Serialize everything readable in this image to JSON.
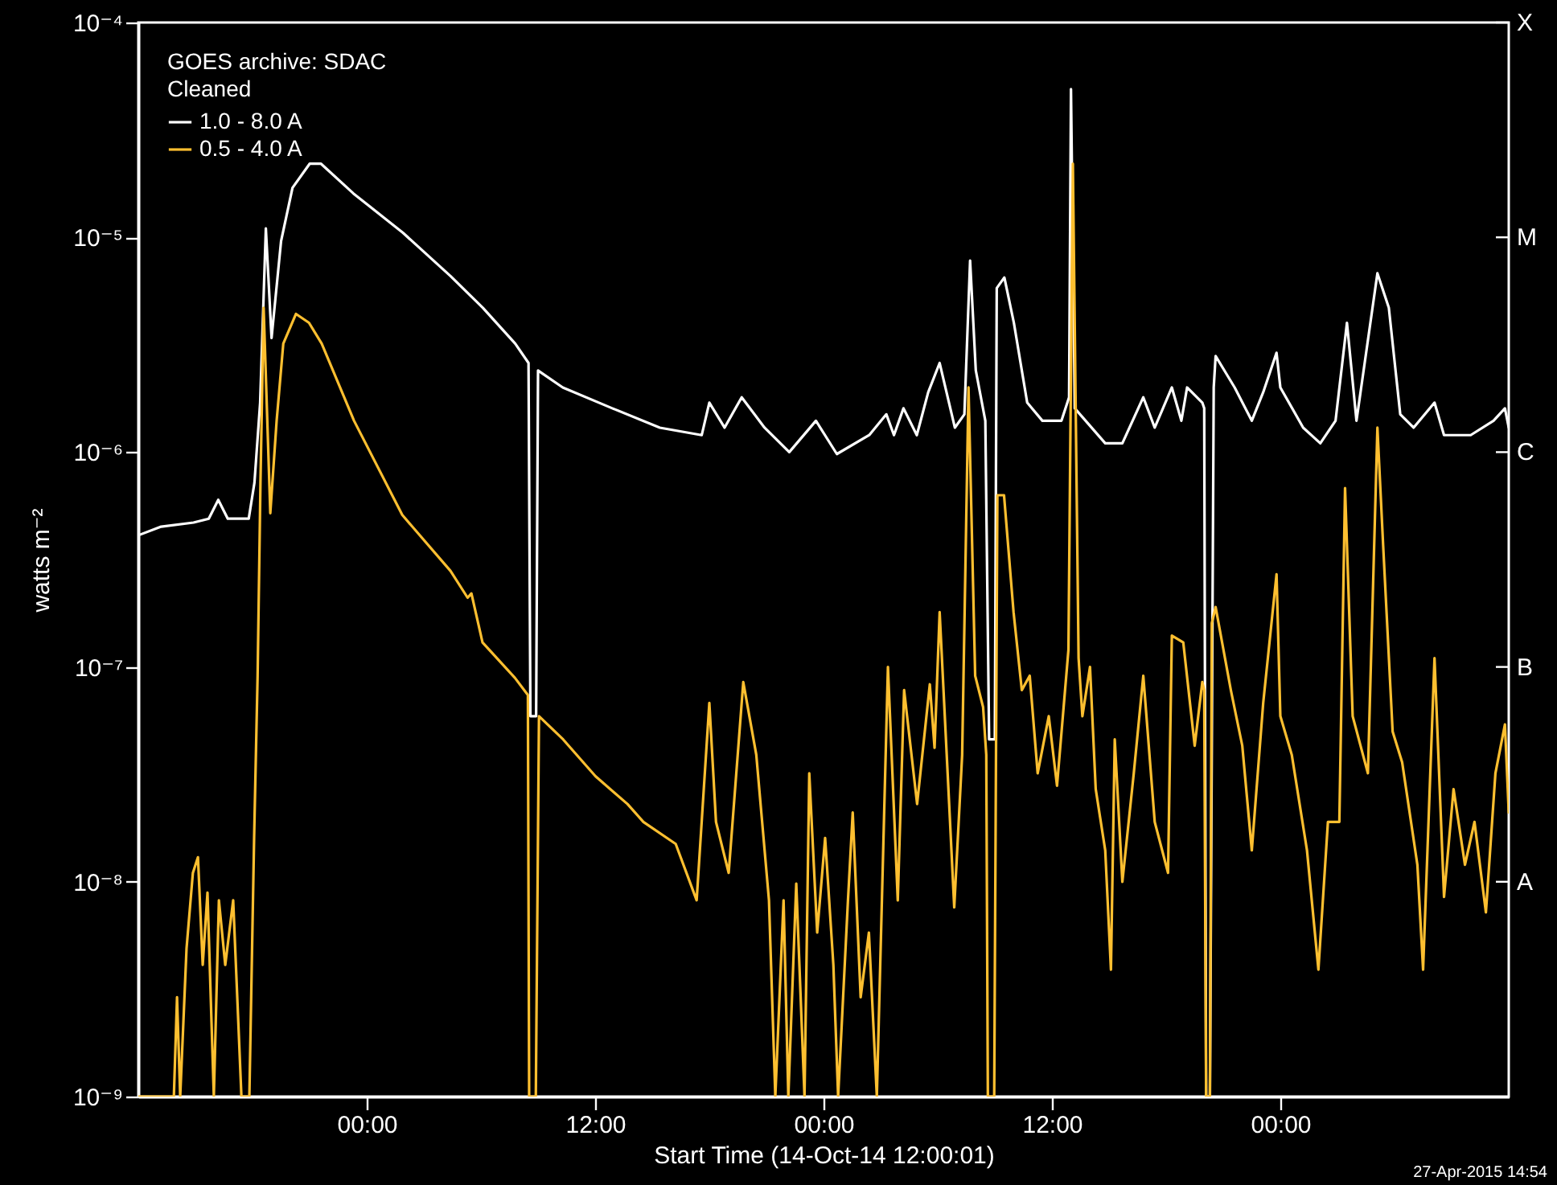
{
  "chart_data": {
    "type": "line",
    "xlabel": "Start Time (14-Oct-14 12:00:01)",
    "ylabel": "watts m⁻²",
    "legend_title": "GOES archive: SDAC",
    "legend": "top left",
    "grid": false,
    "log": true,
    "line_style": "solid",
    "marker": "none",
    "annotations": [
      "Cleaned",
      "A",
      "B",
      "C",
      "M",
      "X",
      "27-Apr-2015 14:54"
    ],
    "xlim": [
      "--10-14T12:00",
      "--10-17T12:00"
    ],
    "xticks": [
      {
        "value": "--10-15T00:00",
        "label": "00:00"
      },
      {
        "value": "--10-15T12:00",
        "label": "12:00"
      },
      {
        "value": "--10-16T00:00",
        "label": "00:00"
      },
      {
        "value": "--10-16T12:00",
        "label": "12:00"
      },
      {
        "value": "--10-17T00:00",
        "label": "00:00"
      }
    ],
    "ylim": [
      1e-09,
      0.0001
    ],
    "yticks": [
      {
        "value": 1e-09,
        "label": "10⁻⁹"
      },
      {
        "value": 1e-08,
        "label": "10⁻⁸"
      },
      {
        "value": 1e-07,
        "label": "10⁻⁷"
      },
      {
        "value": 1e-06,
        "label": "10⁻⁶"
      },
      {
        "value": 1e-05,
        "label": "10⁻⁵"
      },
      {
        "value": 0.0001,
        "label": "10⁻⁴"
      }
    ],
    "series": [
      {
        "name": "1.0 - 8.0 A",
        "color": "#ffffff",
        "x": [
          "--10-14T12:00",
          "--10-14T13:12",
          "--10-14T14:54",
          "--10-14T15:42",
          "--10-14T16:12",
          "--10-14T16:42",
          "--10-14T17:48",
          "--10-14T18:06",
          "--10-14T18:24",
          "--10-14T18:42",
          "--10-14T19:00",
          "--10-14T19:30",
          "--10-14T20:06",
          "--10-14T21:00",
          "--10-14T21:36",
          "--10-14T23:18",
          "--10-15T01:54",
          "--10-15T04:24",
          "--10-15T06:06",
          "--10-15T07:48",
          "--10-15T08:30",
          "--10-15T08:36",
          "--10-15T08:54",
          "--10-15T09:00",
          "--10-15T10:18",
          "--10-15T12:54",
          "--10-15T15:24",
          "--10-15T17:36",
          "--10-15T18:00",
          "--10-15T18:48",
          "--10-15T19:42",
          "--10-15T20:54",
          "--10-15T22:12",
          "--10-15T23:36",
          "--10-16T00:42",
          "--10-16T02:24",
          "--10-16T03:18",
          "--10-16T03:42",
          "--10-16T04:12",
          "--10-16T04:54",
          "--10-16T05:30",
          "--10-16T06:06",
          "--10-16T06:54",
          "--10-16T07:24",
          "--10-16T07:42",
          "--10-16T08:00",
          "--10-16T08:30",
          "--10-16T08:42",
          "--10-16T09:00",
          "--10-16T09:06",
          "--10-16T09:30",
          "--10-16T10:00",
          "--10-16T10:42",
          "--10-16T11:30",
          "--10-16T12:30",
          "--10-16T12:54",
          "--10-16T13:00",
          "--10-16T13:12",
          "--10-16T14:48",
          "--10-16T15:42",
          "--10-16T16:48",
          "--10-16T17:24",
          "--10-16T18:18",
          "--10-16T18:48",
          "--10-16T19:06",
          "--10-16T19:54",
          "--10-16T20:00",
          "--10-16T20:06",
          "--10-16T20:18",
          "--10-16T20:30",
          "--10-16T20:36",
          "--10-16T21:36",
          "--10-16T22:30",
          "--10-16T23:06",
          "--10-16T23:48",
          "--10-17T00:00",
          "--10-17T01:12",
          "--10-17T02:06",
          "--10-17T02:54",
          "--10-17T03:30",
          "--10-17T04:00",
          "--10-17T05:06",
          "--10-17T05:42",
          "--10-17T06:18",
          "--10-17T07:00",
          "--10-17T08:06",
          "--10-17T08:36",
          "--10-17T10:00",
          "--10-17T11:12",
          "--10-17T11:48",
          "--10-17T12:00"
        ],
        "values": [
          4.1e-07,
          4.5e-07,
          4.7e-07,
          4.9e-07,
          6e-07,
          4.9e-07,
          4.9e-07,
          7.2e-07,
          1.7e-06,
          1.1e-05,
          3.4e-06,
          9.6e-06,
          1.7e-05,
          2.2e-05,
          2.2e-05,
          1.6e-05,
          1.05e-05,
          6.6e-06,
          4.7e-06,
          3.2e-06,
          2.6e-06,
          5.9e-08,
          5.9e-08,
          2.4e-06,
          2e-06,
          1.6e-06,
          1.3e-06,
          1.2e-06,
          1.7e-06,
          1.3e-06,
          1.8e-06,
          1.3e-06,
          1e-06,
          1.4e-06,
          9.8e-07,
          1.2e-06,
          1.5e-06,
          1.2e-06,
          1.6e-06,
          1.2e-06,
          1.9e-06,
          2.6e-06,
          1.3e-06,
          1.5e-06,
          7.8e-06,
          2.4e-06,
          1.4e-06,
          4.6e-08,
          4.6e-08,
          5.8e-06,
          6.5e-06,
          4e-06,
          1.7e-06,
          1.4e-06,
          1.4e-06,
          1.8e-06,
          4.9e-05,
          1.6e-06,
          1.1e-06,
          1.1e-06,
          1.8e-06,
          1.3e-06,
          2e-06,
          1.4e-06,
          2e-06,
          1.7e-06,
          1.6e-06,
          1e-09,
          1e-09,
          2e-06,
          2.8e-06,
          2e-06,
          1.4e-06,
          1.9e-06,
          2.9e-06,
          2e-06,
          1.3e-06,
          1.1e-06,
          1.4e-06,
          4e-06,
          1.4e-06,
          6.8e-06,
          4.7e-06,
          1.5e-06,
          1.3e-06,
          1.7e-06,
          1.2e-06,
          1.2e-06,
          1.4e-06,
          1.6e-06,
          1.3e-06
        ]
      },
      {
        "name": "0.5 - 4.0 A",
        "color": "#fdbf30",
        "x": [
          "--10-14T12:00",
          "--10-14T13:52",
          "--10-14T14:02",
          "--10-14T14:12",
          "--10-14T14:32",
          "--10-14T14:52",
          "--10-14T15:08",
          "--10-14T15:23",
          "--10-14T15:38",
          "--10-14T15:58",
          "--10-14T16:14",
          "--10-14T16:34",
          "--10-14T16:59",
          "--10-14T17:25",
          "--10-14T17:50",
          "--10-14T18:05",
          "--10-14T18:16",
          "--10-14T18:25",
          "--10-14T18:35",
          "--10-14T18:56",
          "--10-14T19:16",
          "--10-14T19:37",
          "--10-14T20:17",
          "--10-14T20:58",
          "--10-14T21:38",
          "--10-14T23:20",
          "--10-15T01:52",
          "--10-15T04:24",
          "--10-15T05:18",
          "--10-15T05:30",
          "--10-15T06:05",
          "--10-15T07:47",
          "--10-15T08:28",
          "--10-15T08:32",
          "--10-15T08:53",
          "--10-15T09:03",
          "--10-15T10:19",
          "--10-15T12:01",
          "--10-15T13:42",
          "--10-15T14:32",
          "--10-15T16:14",
          "--10-15T17:20",
          "--10-15T18:00",
          "--10-15T18:21",
          "--10-15T19:01",
          "--10-15T19:47",
          "--10-15T20:28",
          "--10-15T21:08",
          "--10-15T21:28",
          "--10-15T21:54",
          "--10-15T22:09",
          "--10-15T22:34",
          "--10-15T23:00",
          "--10-15T23:15",
          "--10-15T23:40",
          "--10-16T00:05",
          "--10-16T00:31",
          "--10-16T00:46",
          "--10-16T01:17",
          "--10-16T01:32",
          "--10-16T01:57",
          "--10-16T02:23",
          "--10-16T02:48",
          "--10-16T03:23",
          "--10-16T03:54",
          "--10-16T04:14",
          "--10-16T04:55",
          "--10-16T05:35",
          "--10-16T05:50",
          "--10-16T06:06",
          "--10-16T06:36",
          "--10-16T06:52",
          "--10-16T07:17",
          "--10-16T07:37",
          "--10-16T07:58",
          "--10-16T08:23",
          "--10-16T08:33",
          "--10-16T08:38",
          "--10-16T08:58",
          "--10-16T09:08",
          "--10-16T09:29",
          "--10-16T09:59",
          "--10-16T10:25",
          "--10-16T10:50",
          "--10-16T11:15",
          "--10-16T11:50",
          "--10-16T12:16",
          "--10-16T12:52",
          "--10-16T13:06",
          "--10-16T13:24",
          "--10-16T13:36",
          "--10-16T14:00",
          "--10-16T14:18",
          "--10-16T14:48",
          "--10-16T15:06",
          "--10-16T15:18",
          "--10-16T15:42",
          "--10-16T16:18",
          "--10-16T16:48",
          "--10-16T17:24",
          "--10-16T18:06",
          "--10-16T18:18",
          "--10-16T18:54",
          "--10-16T19:30",
          "--10-16T19:54",
          "--10-16T20:00",
          "--10-16T20:06",
          "--10-16T20:18",
          "--10-16T20:24",
          "--10-16T20:36",
          "--10-16T21:24",
          "--10-16T22:00",
          "--10-16T22:30",
          "--10-16T23:06",
          "--10-16T23:48",
          "--10-17T00:00",
          "--10-17T00:36",
          "--10-17T01:24",
          "--10-17T02:00",
          "--10-17T02:30",
          "--10-17T03:06",
          "--10-17T03:24",
          "--10-17T03:48",
          "--10-17T04:36",
          "--10-17T05:06",
          "--10-17T05:24",
          "--10-17T05:54",
          "--10-17T06:24",
          "--10-17T07:12",
          "--10-17T07:30",
          "--10-17T08:06",
          "--10-17T08:36",
          "--10-17T09:06",
          "--10-17T09:42",
          "--10-17T10:12",
          "--10-17T10:48",
          "--10-17T11:18",
          "--10-17T11:48",
          "--10-17T12:00"
        ],
        "values": [
          1e-09,
          1e-09,
          2.9e-09,
          1e-09,
          4.9e-09,
          1.1e-08,
          1.3e-08,
          4.1e-09,
          8.9e-09,
          1e-09,
          8.2e-09,
          4.1e-09,
          8.2e-09,
          1e-09,
          1e-09,
          1.6e-08,
          9.1e-08,
          7.2e-07,
          4.7e-06,
          5.2e-07,
          1.4e-06,
          3.2e-06,
          4.4e-06,
          4e-06,
          3.2e-06,
          1.4e-06,
          5.1e-07,
          2.8e-07,
          2.1e-07,
          2.2e-07,
          1.3e-07,
          8.9e-08,
          7.4e-08,
          1e-09,
          1e-09,
          5.9e-08,
          4.6e-08,
          3.1e-08,
          2.3e-08,
          1.9e-08,
          1.5e-08,
          8.2e-09,
          6.8e-08,
          1.9e-08,
          1.1e-08,
          8.5e-08,
          3.9e-08,
          8.2e-09,
          1e-09,
          8.2e-09,
          1e-09,
          9.8e-09,
          1e-09,
          3.2e-08,
          5.8e-09,
          1.6e-08,
          4.1e-09,
          1e-09,
          8.2e-09,
          2.1e-08,
          2.9e-09,
          5.8e-09,
          1e-09,
          1e-07,
          8.2e-09,
          7.8e-08,
          2.3e-08,
          8.3e-08,
          4.2e-08,
          1.8e-07,
          2.3e-08,
          7.6e-09,
          3.9e-08,
          2e-06,
          9.1e-08,
          6.5e-08,
          3.9e-08,
          1e-09,
          1e-09,
          6.3e-07,
          6.3e-07,
          1.8e-07,
          7.8e-08,
          9.1e-08,
          3.2e-08,
          5.9e-08,
          2.8e-08,
          1.2e-07,
          2.2e-05,
          1.1e-07,
          5.9e-08,
          1e-07,
          2.7e-08,
          1.4e-08,
          3.9e-09,
          4.6e-08,
          1e-08,
          3.2e-08,
          9.1e-08,
          1.9e-08,
          1.1e-08,
          1.4e-07,
          1.3e-07,
          4.3e-08,
          8.5e-08,
          7.8e-08,
          1e-09,
          1e-09,
          1.6e-07,
          1.9e-07,
          7.8e-08,
          4.3e-08,
          1.4e-08,
          6.8e-08,
          2.7e-07,
          5.9e-08,
          3.9e-08,
          1.4e-08,
          3.9e-09,
          1.9e-08,
          1.9e-08,
          6.8e-07,
          5.9e-08,
          3.2e-08,
          1.3e-06,
          3.7e-07,
          5e-08,
          3.6e-08,
          1.2e-08,
          3.9e-09,
          1.1e-07,
          8.5e-09,
          2.7e-08,
          1.2e-08,
          1.9e-08,
          7.2e-09,
          3.2e-08,
          5.4e-08,
          2.1e-08
        ]
      }
    ]
  }
}
